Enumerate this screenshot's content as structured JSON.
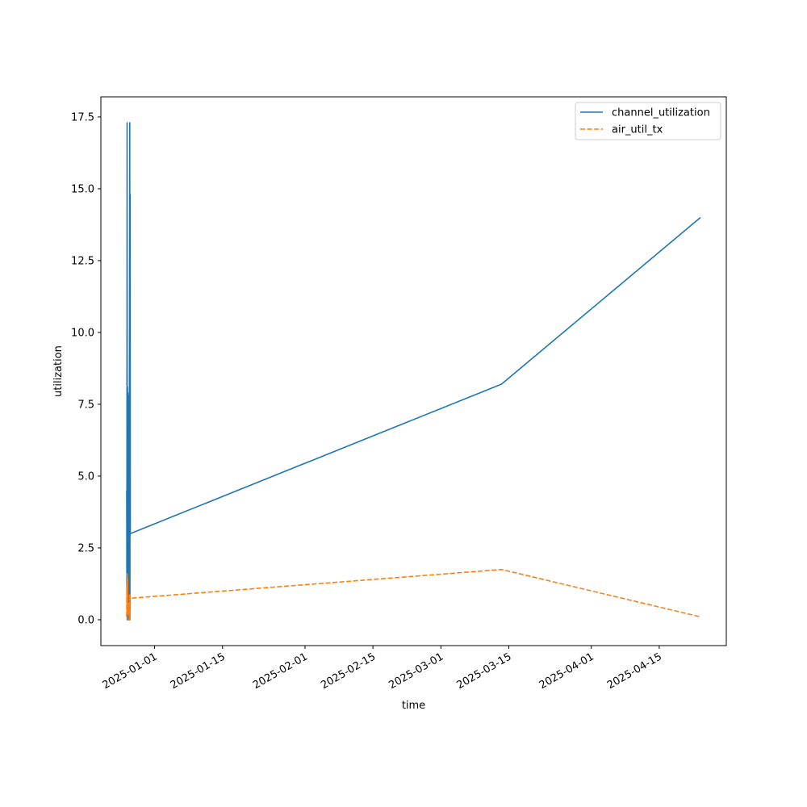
{
  "chart_data": {
    "type": "line",
    "xlabel": "time",
    "ylabel": "utilization",
    "x_axis": {
      "scale": "time",
      "ticks": [
        "2025-01-01",
        "2025-01-15",
        "2025-02-01",
        "2025-02-15",
        "2025-03-01",
        "2025-03-15",
        "2025-04-01",
        "2025-04-15"
      ],
      "tick_label_rotation_deg": 30
    },
    "y_axis": {
      "ylim": [
        -0.9,
        18.2
      ],
      "ticks": [
        "0.0",
        "2.5",
        "5.0",
        "7.5",
        "10.0",
        "12.5",
        "15.0",
        "17.5"
      ]
    },
    "grid": false,
    "legend": {
      "placement": "top-right"
    },
    "series": [
      {
        "name": "channel_utilization",
        "color": "#1f77b4",
        "style": "solid",
        "points": [
          [
            "2024-12-26T06:00",
            4.5
          ],
          [
            "2024-12-26T07:00",
            1.0
          ],
          [
            "2024-12-26T08:00",
            17.3
          ],
          [
            "2024-12-26T09:00",
            0.0
          ],
          [
            "2024-12-26T10:00",
            8.1
          ],
          [
            "2024-12-26T11:00",
            0.9
          ],
          [
            "2024-12-26T12:00",
            7.9
          ],
          [
            "2024-12-26T13:00",
            0.0
          ],
          [
            "2024-12-26T14:00",
            6.2
          ],
          [
            "2024-12-26T15:00",
            1.4
          ],
          [
            "2024-12-26T16:00",
            7.8
          ],
          [
            "2024-12-26T18:00",
            0.0
          ],
          [
            "2024-12-26T21:00",
            17.3
          ],
          [
            "2024-12-26T22:00",
            0.0
          ],
          [
            "2024-12-26T23:00",
            14.8
          ],
          [
            "2024-12-27T00:00",
            3.0
          ],
          [
            "2025-03-13T12:00",
            8.2
          ],
          [
            "2025-04-23T12:00",
            14.0
          ]
        ]
      },
      {
        "name": "air_util_tx",
        "color": "#ff7f0e",
        "style": "dashed",
        "points": [
          [
            "2024-12-26T06:00",
            0.1
          ],
          [
            "2024-12-26T07:00",
            1.2
          ],
          [
            "2024-12-26T08:00",
            0.0
          ],
          [
            "2024-12-26T09:00",
            1.6
          ],
          [
            "2024-12-26T10:00",
            0.3
          ],
          [
            "2024-12-26T11:00",
            1.4
          ],
          [
            "2024-12-26T12:00",
            0.2
          ],
          [
            "2024-12-26T14:00",
            0.6
          ],
          [
            "2024-12-26T18:00",
            0.0
          ],
          [
            "2024-12-26T20:00",
            0.9
          ],
          [
            "2024-12-26T22:00",
            0.0
          ],
          [
            "2024-12-27T00:00",
            0.75
          ],
          [
            "2025-03-13T12:00",
            1.75
          ],
          [
            "2025-04-23T12:00",
            0.1
          ]
        ]
      }
    ]
  }
}
